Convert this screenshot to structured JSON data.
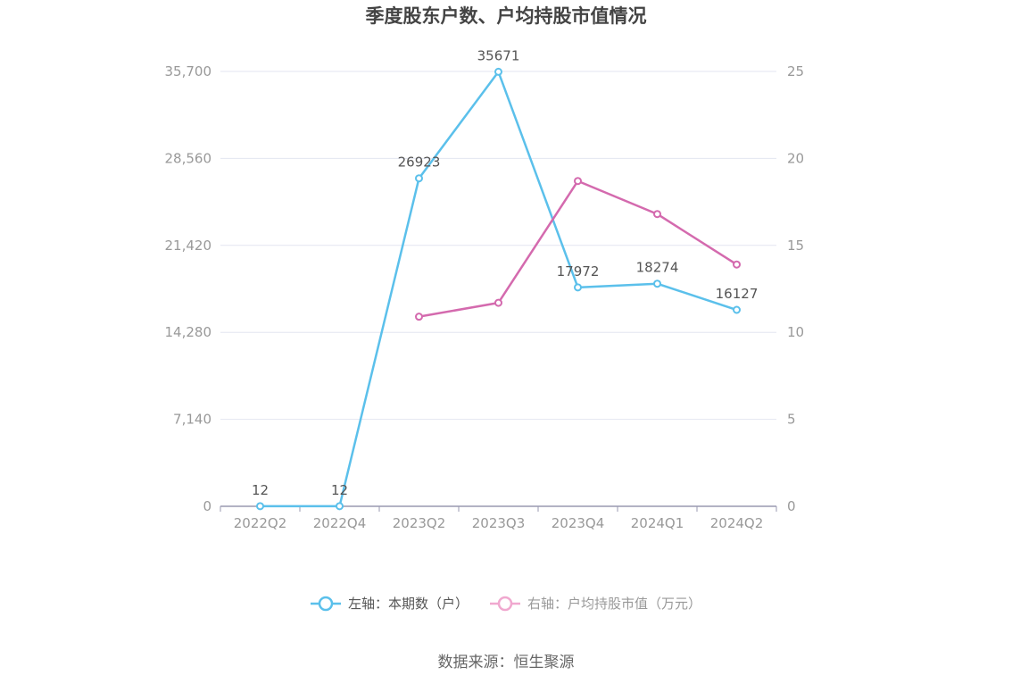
{
  "chart_data": {
    "type": "line",
    "title": "季度股东户数、户均持股市值情况",
    "categories": [
      "2022Q2",
      "2022Q4",
      "2023Q2",
      "2023Q3",
      "2023Q4",
      "2024Q1",
      "2024Q2"
    ],
    "series": [
      {
        "name": "左轴：本期数（户）",
        "axis": "left",
        "color": "#5bc0eb",
        "values": [
          12,
          12,
          26923,
          35671,
          17972,
          18274,
          16127
        ],
        "data_labels": [
          "12",
          "12",
          "26923",
          "35671",
          "17972",
          "18274",
          "16127"
        ]
      },
      {
        "name": "右轴：户均持股市值（万元）",
        "axis": "right",
        "color": "#d46aae",
        "legend_color": "#f0a8cf",
        "values": [
          null,
          null,
          10.9,
          11.7,
          18.7,
          16.8,
          13.9
        ]
      }
    ],
    "y_left": {
      "ylim": [
        0,
        35700
      ],
      "ticks": [
        "0",
        "7,140",
        "14,280",
        "21,420",
        "28,560",
        "35,700"
      ]
    },
    "y_right": {
      "ylim": [
        0,
        25
      ],
      "ticks": [
        "0",
        "5",
        "10",
        "15",
        "20",
        "25"
      ]
    },
    "grid": true,
    "legend_position": "bottom"
  },
  "source": "数据来源：恒生聚源"
}
